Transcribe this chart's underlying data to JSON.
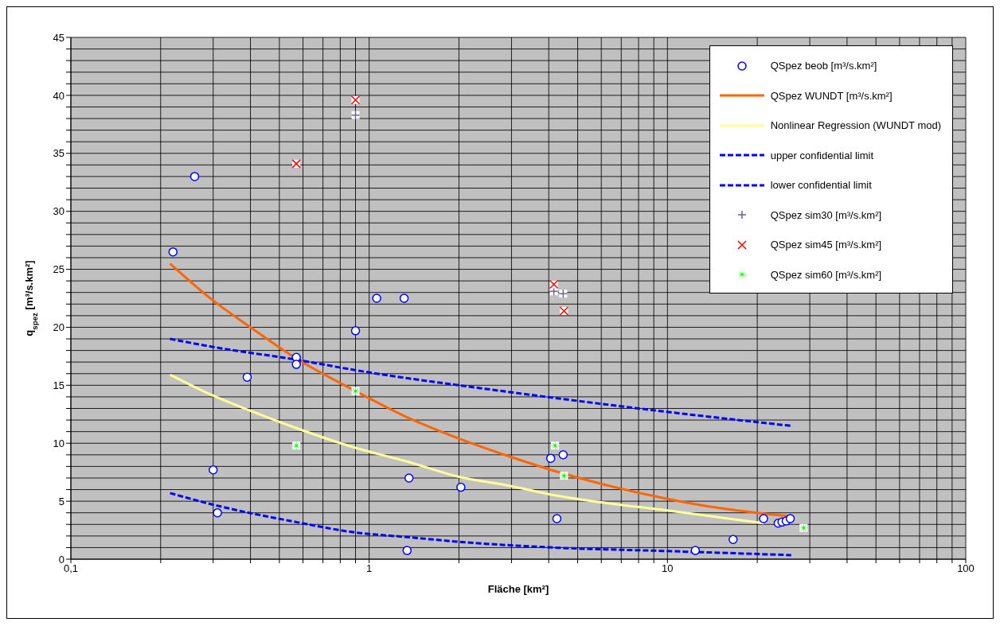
{
  "chart_data": {
    "type": "scatter",
    "xlabel": "Fläche [km²]",
    "ylabel": "q$_{spez}$ [m³/s.km²]",
    "log": "x",
    "grid": true,
    "legend": "top right",
    "xlim": [
      0.1,
      100
    ],
    "ylim": [
      0,
      45
    ],
    "xticks": [
      {
        "value": 0.1,
        "label": "0,1"
      },
      {
        "value": 0.2,
        "label": null
      },
      {
        "value": 0.3,
        "label": null
      },
      {
        "value": 0.4,
        "label": null
      },
      {
        "value": 0.5,
        "label": null
      },
      {
        "value": 0.6,
        "label": null
      },
      {
        "value": 0.7,
        "label": null
      },
      {
        "value": 0.8,
        "label": null
      },
      {
        "value": 0.9,
        "label": null
      },
      1,
      {
        "value": 2,
        "label": null
      },
      {
        "value": 3,
        "label": null
      },
      {
        "value": 4,
        "label": null
      },
      {
        "value": 5,
        "label": null
      },
      {
        "value": 6,
        "label": null
      },
      {
        "value": 7,
        "label": null
      },
      {
        "value": 8,
        "label": null
      },
      {
        "value": 9,
        "label": null
      },
      10,
      {
        "value": 20,
        "label": null
      },
      {
        "value": 30,
        "label": null
      },
      {
        "value": 40,
        "label": null
      },
      {
        "value": 50,
        "label": null
      },
      {
        "value": 60,
        "label": null
      },
      {
        "value": 70,
        "label": null
      },
      {
        "value": 80,
        "label": null
      },
      {
        "value": 90,
        "label": null
      },
      100
    ],
    "yticks": [
      0,
      {
        "value": 1,
        "label": null
      },
      {
        "value": 2,
        "label": null
      },
      {
        "value": 3,
        "label": null
      },
      {
        "value": 4,
        "label": null
      },
      5,
      {
        "value": 6,
        "label": null
      },
      {
        "value": 7,
        "label": null
      },
      {
        "value": 8,
        "label": null
      },
      {
        "value": 9,
        "label": null
      },
      10,
      {
        "value": 11,
        "label": null
      },
      {
        "value": 12,
        "label": null
      },
      {
        "value": 13,
        "label": null
      },
      {
        "value": 14,
        "label": null
      },
      15,
      {
        "value": 16,
        "label": null
      },
      {
        "value": 17,
        "label": null
      },
      {
        "value": 18,
        "label": null
      },
      {
        "value": 19,
        "label": null
      },
      20,
      {
        "value": 21,
        "label": null
      },
      {
        "value": 22,
        "label": null
      },
      {
        "value": 23,
        "label": null
      },
      {
        "value": 24,
        "label": null
      },
      25,
      {
        "value": 26,
        "label": null
      },
      {
        "value": 27,
        "label": null
      },
      {
        "value": 28,
        "label": null
      },
      {
        "value": 29,
        "label": null
      },
      30,
      {
        "value": 31,
        "label": null
      },
      {
        "value": 32,
        "label": null
      },
      {
        "value": 33,
        "label": null
      },
      {
        "value": 34,
        "label": null
      },
      35,
      {
        "value": 36,
        "label": null
      },
      {
        "value": 37,
        "label": null
      },
      {
        "value": 38,
        "label": null
      },
      {
        "value": 39,
        "label": null
      },
      40,
      {
        "value": 41,
        "label": null
      },
      {
        "value": 42,
        "label": null
      },
      {
        "value": 43,
        "label": null
      },
      {
        "value": 44,
        "label": null
      },
      45
    ],
    "series": [
      {
        "name": "QSpez beob [m³/s.km²]",
        "marker": "circle",
        "color": "#0000ff",
        "x": [
          0.26,
          0.22,
          1.06,
          1.31,
          0.9,
          0.57,
          0.57,
          0.39,
          0.3,
          0.31,
          1.36,
          2.03,
          4.06,
          4.47,
          4.26,
          1.34,
          12.4,
          16.6,
          21.0,
          23.5,
          24.2,
          25.0,
          25.8
        ],
        "values": [
          33,
          26.5,
          22.5,
          22.5,
          19.7,
          17.4,
          16.8,
          15.7,
          7.7,
          4.0,
          7.0,
          6.2,
          8.7,
          9.0,
          3.5,
          0.75,
          0.75,
          1.7,
          3.5,
          3.1,
          3.2,
          3.3,
          3.5
        ]
      },
      {
        "name": "QSpez WUNDT [m³/s.km²]",
        "type": "line",
        "marker": "none",
        "line_style": "solid",
        "color": "#ff6600",
        "x": [
          0.215,
          0.3,
          0.4,
          0.57,
          0.9,
          1.35,
          2,
          3,
          4.2,
          6,
          10,
          15,
          20,
          26
        ],
        "values": [
          25.5,
          22.3,
          20.0,
          17.3,
          14.5,
          12.2,
          10.4,
          8.8,
          7.6,
          6.5,
          5.2,
          4.4,
          4.0,
          3.7
        ]
      },
      {
        "name": "Nonlinear Regression (WUNDT mod)",
        "type": "line",
        "marker": "none",
        "line_style": "solid",
        "color": "#ffff99",
        "x": [
          0.215,
          0.3,
          0.4,
          0.57,
          0.9,
          1.35,
          2,
          3,
          4.2,
          6,
          10,
          15,
          21
        ],
        "values": [
          15.9,
          14.1,
          12.8,
          11.3,
          9.6,
          8.4,
          7.1,
          6.3,
          5.5,
          4.9,
          4.2,
          3.6,
          3.1
        ]
      },
      {
        "name": "upper confidential limit",
        "type": "line",
        "marker": "none",
        "line_style": "dashed",
        "color": "#0000ff",
        "x": [
          0.215,
          0.3,
          0.57,
          0.9,
          1.35,
          2,
          4.2,
          10,
          26
        ],
        "values": [
          19.0,
          18.3,
          17.2,
          16.3,
          15.6,
          15.0,
          13.9,
          12.7,
          11.5
        ]
      },
      {
        "name": "lower confidential limit",
        "type": "line",
        "marker": "none",
        "line_style": "dashed",
        "color": "#0000ff",
        "x": [
          0.215,
          0.3,
          0.57,
          0.9,
          1.35,
          2,
          4.2,
          10,
          26
        ],
        "values": [
          5.7,
          4.7,
          3.2,
          2.3,
          1.9,
          1.5,
          1.0,
          0.7,
          0.35
        ]
      },
      {
        "name": "QSpez sim30 [m³/s.km²]",
        "marker": "cross",
        "color": "#666699",
        "x": [
          0.9,
          4.16,
          4.47
        ],
        "values": [
          38.3,
          23.1,
          22.9
        ]
      },
      {
        "name": "QSpez sim45 [m³/s.km²]",
        "marker": "x",
        "color": "#ff0000",
        "x": [
          0.9,
          0.57,
          4.16,
          4.5
        ],
        "values": [
          39.6,
          34.1,
          23.7,
          21.4
        ]
      },
      {
        "name": "QSpez sim60 [m³/s.km²]",
        "marker": "star",
        "color": "#00ff00",
        "x": [
          0.57,
          0.9,
          4.2,
          4.5,
          28.6
        ],
        "values": [
          9.8,
          14.5,
          9.8,
          7.2,
          2.7
        ]
      }
    ]
  }
}
